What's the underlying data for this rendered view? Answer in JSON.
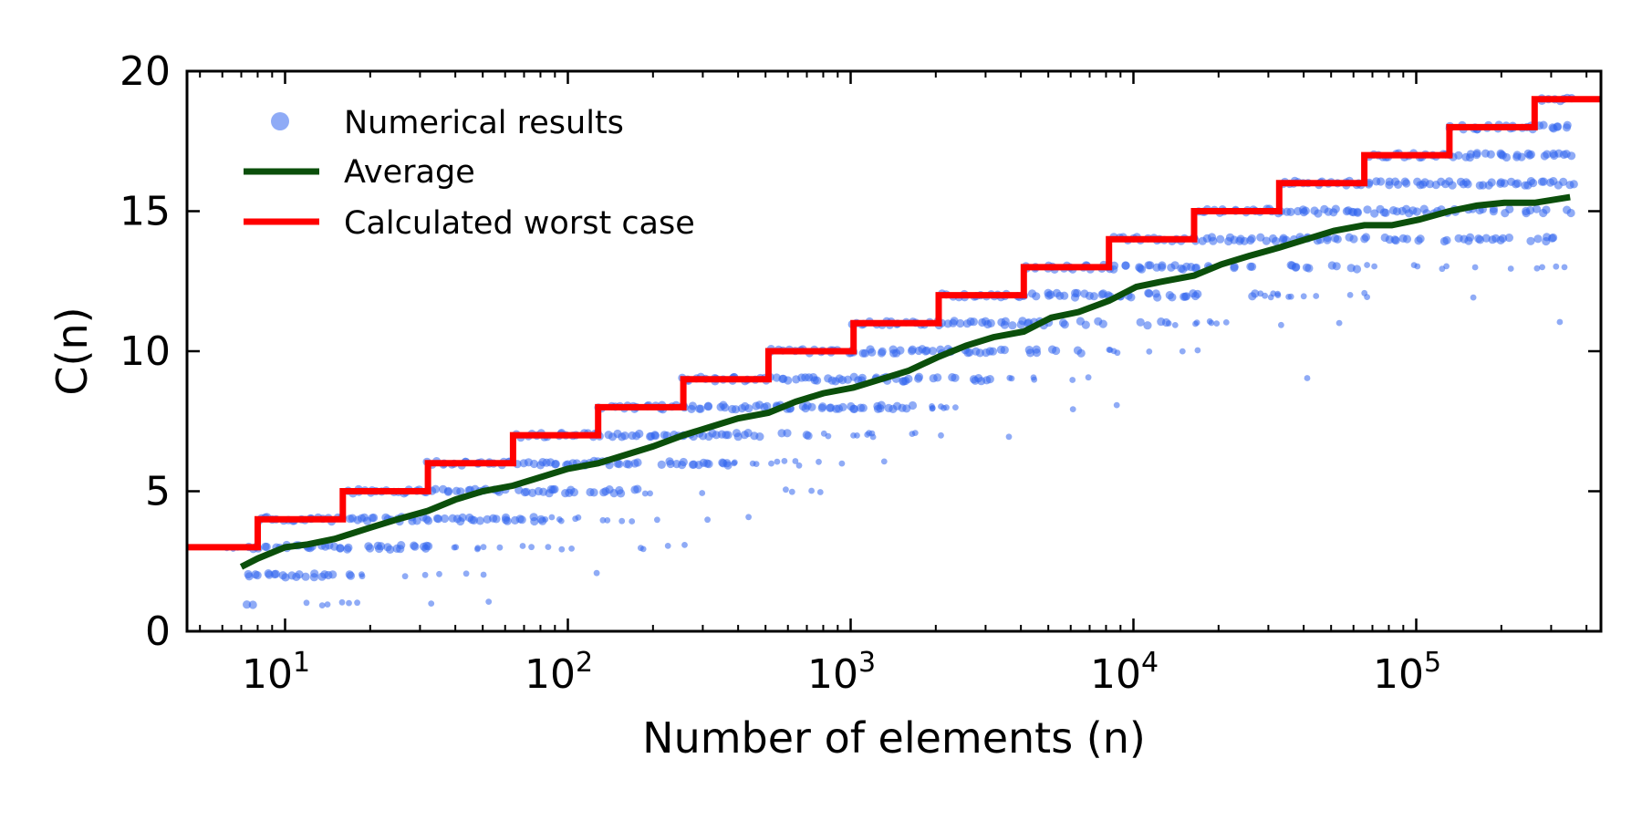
{
  "chart_data": {
    "type": "scatter",
    "title": "",
    "xlabel": "Number of elements (n)",
    "ylabel": "C(n)",
    "xscale": "log",
    "xlim": [
      4.5,
      450000
    ],
    "ylim": [
      0,
      20
    ],
    "yticks": [
      0,
      5,
      10,
      15,
      20
    ],
    "xticks": [
      {
        "value": 10,
        "base": "10",
        "exp": "1"
      },
      {
        "value": 100,
        "base": "10",
        "exp": "2"
      },
      {
        "value": 1000,
        "base": "10",
        "exp": "3"
      },
      {
        "value": 10000,
        "base": "10",
        "exp": "4"
      },
      {
        "value": 100000,
        "base": "10",
        "exp": "5"
      }
    ],
    "legend_position": "top-left",
    "colors": {
      "scatter": "#3366ee",
      "average": "#0b4f0b",
      "worst": "#ff0000"
    },
    "series": [
      {
        "name": "Numerical results",
        "kind": "scatter",
        "description": "integer comparison counts per trial, jittered; for each n values range from 1 up to the worst case bound",
        "n_range": [
          6,
          350000
        ]
      },
      {
        "name": "Average",
        "kind": "line",
        "x": [
          7,
          8,
          10,
          12,
          15,
          20,
          25,
          32,
          40,
          50,
          64,
          80,
          100,
          128,
          160,
          200,
          256,
          320,
          400,
          512,
          640,
          800,
          1024,
          1280,
          1600,
          2048,
          2560,
          3200,
          4096,
          5120,
          6400,
          8192,
          10240,
          12800,
          16384,
          20480,
          25600,
          32768,
          40960,
          51200,
          65536,
          81920,
          102400,
          131072,
          163840,
          204800,
          262144,
          350000
        ],
        "y": [
          2.3,
          2.6,
          3.0,
          3.1,
          3.3,
          3.7,
          4.0,
          4.3,
          4.7,
          5.0,
          5.2,
          5.5,
          5.8,
          6.0,
          6.3,
          6.6,
          7.0,
          7.3,
          7.6,
          7.8,
          8.2,
          8.5,
          8.7,
          9.0,
          9.3,
          9.8,
          10.2,
          10.5,
          10.7,
          11.2,
          11.4,
          11.8,
          12.3,
          12.5,
          12.7,
          13.1,
          13.4,
          13.7,
          14.0,
          14.3,
          14.5,
          14.5,
          14.7,
          15.0,
          15.2,
          15.3,
          15.3,
          15.5
        ]
      },
      {
        "name": "Calculated worst case",
        "kind": "step",
        "x": [
          4.5,
          8,
          16,
          32,
          64,
          128,
          256,
          512,
          1024,
          2048,
          4096,
          8192,
          16384,
          32768,
          65536,
          131072,
          262144,
          450000
        ],
        "y": [
          3,
          4,
          5,
          6,
          7,
          8,
          9,
          10,
          11,
          12,
          13,
          14,
          15,
          16,
          17,
          18,
          19,
          19
        ]
      }
    ]
  }
}
